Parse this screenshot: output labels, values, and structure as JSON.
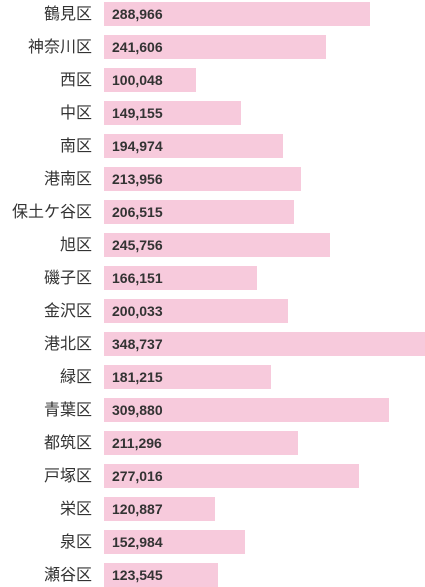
{
  "chart_data": {
    "type": "bar",
    "orientation": "horizontal",
    "categories": [
      "鶴見区",
      "神奈川区",
      "西区",
      "中区",
      "南区",
      "港南区",
      "保土ケ谷区",
      "旭区",
      "磯子区",
      "金沢区",
      "港北区",
      "緑区",
      "青葉区",
      "都筑区",
      "戸塚区",
      "栄区",
      "泉区",
      "瀬谷区"
    ],
    "values": [
      288966,
      241606,
      100048,
      149155,
      194974,
      213956,
      206515,
      245756,
      166151,
      200033,
      348737,
      181215,
      309880,
      211296,
      277016,
      120887,
      152984,
      123545
    ],
    "value_labels": [
      "288,966",
      "241,606",
      "100,048",
      "149,155",
      "194,974",
      "213,956",
      "206,515",
      "245,756",
      "166,151",
      "200,033",
      "348,737",
      "181,215",
      "309,880",
      "211,296",
      "277,016",
      "120,887",
      "152,984",
      "123,545"
    ],
    "xlim": [
      0,
      348737
    ],
    "bar_color": "#f7cadc",
    "grid": false
  }
}
